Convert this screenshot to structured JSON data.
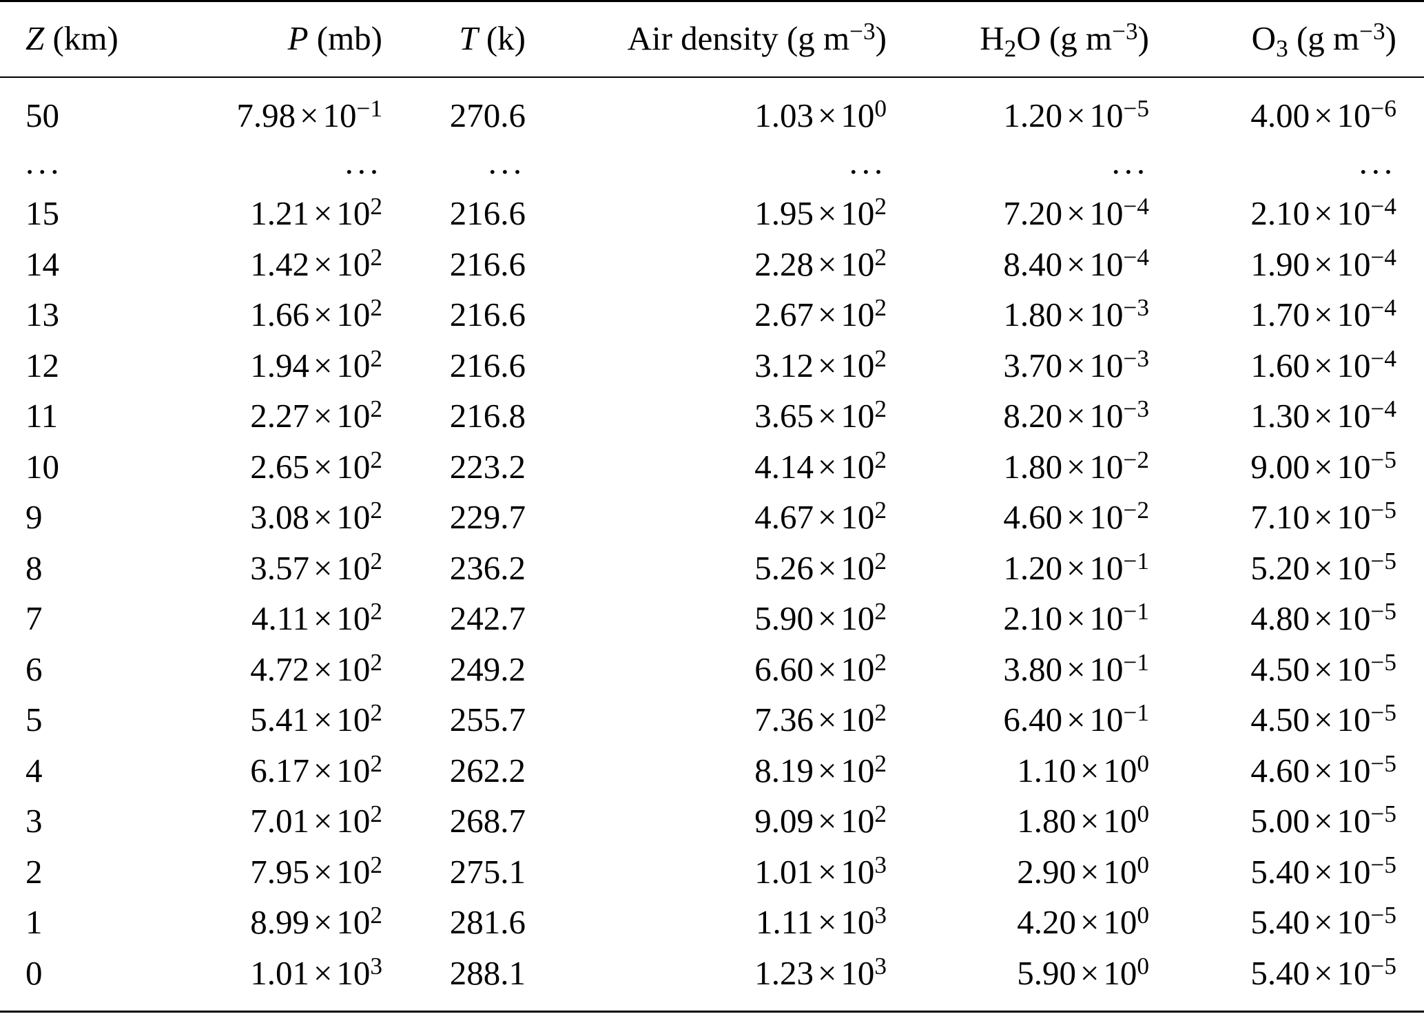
{
  "header": {
    "z_var": "Z",
    "z_unit": "(km)",
    "p_var": "P",
    "p_unit": "(mb)",
    "t_var": "T",
    "t_unit": "(k)",
    "air_label": "Air density",
    "air_unit_pre": "(g m",
    "air_unit_exp": "−3",
    "air_unit_post": ")",
    "h2o_pre": "H",
    "h2o_sub": "2",
    "h2o_post": "O",
    "h2o_unit_pre": "(g m",
    "h2o_unit_exp": "−3",
    "h2o_unit_post": ")",
    "o3_pre": "O",
    "o3_sub": "3",
    "o3_unit_pre": "(g m",
    "o3_unit_exp": "−3",
    "o3_unit_post": ")"
  },
  "times_symbol": "×",
  "base": "10",
  "ellipsis": "...",
  "rows": [
    {
      "z": "50",
      "p": [
        "7.98",
        "−1"
      ],
      "t": "270.6",
      "air": [
        "1.03",
        "0"
      ],
      "h2o": [
        "1.20",
        "−5"
      ],
      "o3": [
        "4.00",
        "−6"
      ]
    },
    {
      "z": "15",
      "p": [
        "1.21",
        "2"
      ],
      "t": "216.6",
      "air": [
        "1.95",
        "2"
      ],
      "h2o": [
        "7.20",
        "−4"
      ],
      "o3": [
        "2.10",
        "−4"
      ]
    },
    {
      "z": "14",
      "p": [
        "1.42",
        "2"
      ],
      "t": "216.6",
      "air": [
        "2.28",
        "2"
      ],
      "h2o": [
        "8.40",
        "−4"
      ],
      "o3": [
        "1.90",
        "−4"
      ]
    },
    {
      "z": "13",
      "p": [
        "1.66",
        "2"
      ],
      "t": "216.6",
      "air": [
        "2.67",
        "2"
      ],
      "h2o": [
        "1.80",
        "−3"
      ],
      "o3": [
        "1.70",
        "−4"
      ]
    },
    {
      "z": "12",
      "p": [
        "1.94",
        "2"
      ],
      "t": "216.6",
      "air": [
        "3.12",
        "2"
      ],
      "h2o": [
        "3.70",
        "−3"
      ],
      "o3": [
        "1.60",
        "−4"
      ]
    },
    {
      "z": "11",
      "p": [
        "2.27",
        "2"
      ],
      "t": "216.8",
      "air": [
        "3.65",
        "2"
      ],
      "h2o": [
        "8.20",
        "−3"
      ],
      "o3": [
        "1.30",
        "−4"
      ]
    },
    {
      "z": "10",
      "p": [
        "2.65",
        "2"
      ],
      "t": "223.2",
      "air": [
        "4.14",
        "2"
      ],
      "h2o": [
        "1.80",
        "−2"
      ],
      "o3": [
        "9.00",
        "−5"
      ]
    },
    {
      "z": "9",
      "p": [
        "3.08",
        "2"
      ],
      "t": "229.7",
      "air": [
        "4.67",
        "2"
      ],
      "h2o": [
        "4.60",
        "−2"
      ],
      "o3": [
        "7.10",
        "−5"
      ]
    },
    {
      "z": "8",
      "p": [
        "3.57",
        "2"
      ],
      "t": "236.2",
      "air": [
        "5.26",
        "2"
      ],
      "h2o": [
        "1.20",
        "−1"
      ],
      "o3": [
        "5.20",
        "−5"
      ]
    },
    {
      "z": "7",
      "p": [
        "4.11",
        "2"
      ],
      "t": "242.7",
      "air": [
        "5.90",
        "2"
      ],
      "h2o": [
        "2.10",
        "−1"
      ],
      "o3": [
        "4.80",
        "−5"
      ]
    },
    {
      "z": "6",
      "p": [
        "4.72",
        "2"
      ],
      "t": "249.2",
      "air": [
        "6.60",
        "2"
      ],
      "h2o": [
        "3.80",
        "−1"
      ],
      "o3": [
        "4.50",
        "−5"
      ]
    },
    {
      "z": "5",
      "p": [
        "5.41",
        "2"
      ],
      "t": "255.7",
      "air": [
        "7.36",
        "2"
      ],
      "h2o": [
        "6.40",
        "−1"
      ],
      "o3": [
        "4.50",
        "−5"
      ]
    },
    {
      "z": "4",
      "p": [
        "6.17",
        "2"
      ],
      "t": "262.2",
      "air": [
        "8.19",
        "2"
      ],
      "h2o": [
        "1.10",
        "0"
      ],
      "o3": [
        "4.60",
        "−5"
      ]
    },
    {
      "z": "3",
      "p": [
        "7.01",
        "2"
      ],
      "t": "268.7",
      "air": [
        "9.09",
        "2"
      ],
      "h2o": [
        "1.80",
        "0"
      ],
      "o3": [
        "5.00",
        "−5"
      ]
    },
    {
      "z": "2",
      "p": [
        "7.95",
        "2"
      ],
      "t": "275.1",
      "air": [
        "1.01",
        "3"
      ],
      "h2o": [
        "2.90",
        "0"
      ],
      "o3": [
        "5.40",
        "−5"
      ]
    },
    {
      "z": "1",
      "p": [
        "8.99",
        "2"
      ],
      "t": "281.6",
      "air": [
        "1.11",
        "3"
      ],
      "h2o": [
        "4.20",
        "0"
      ],
      "o3": [
        "5.40",
        "−5"
      ]
    },
    {
      "z": "0",
      "p": [
        "1.01",
        "3"
      ],
      "t": "288.1",
      "air": [
        "1.23",
        "3"
      ],
      "h2o": [
        "5.90",
        "0"
      ],
      "o3": [
        "5.40",
        "−5"
      ]
    }
  ]
}
